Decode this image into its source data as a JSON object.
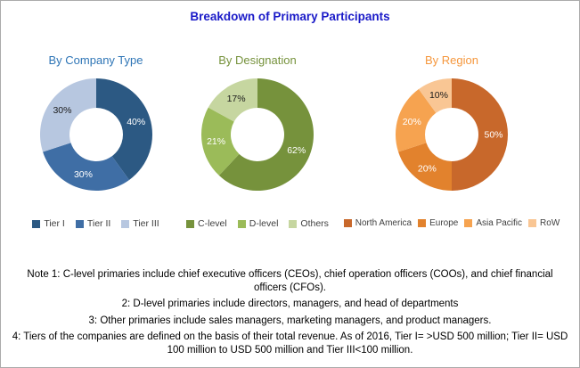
{
  "header": {
    "title": "Breakdown of Primary Participants",
    "title_color": "#1a1ac8"
  },
  "chart_data": [
    {
      "type": "pie",
      "donut": true,
      "title": "By Company Type",
      "title_color": "#2e75b6",
      "legend_position": "bottom",
      "categories": [
        "Tier I",
        "Tier II",
        "Tier III"
      ],
      "values": [
        40,
        30,
        30
      ],
      "value_labels": [
        "40%",
        "30%",
        "30%"
      ],
      "colors": [
        "#2c5983",
        "#3f6ea5",
        "#b7c7e0"
      ],
      "value_label_colors": [
        "#ffffff",
        "#ffffff",
        "#1a1a1a"
      ]
    },
    {
      "type": "pie",
      "donut": true,
      "title": "By Designation",
      "title_color": "#76923c",
      "legend_position": "bottom",
      "categories": [
        "C-level",
        "D-level",
        "Others"
      ],
      "values": [
        62,
        21,
        17
      ],
      "value_labels": [
        "62%",
        "21%",
        "17%"
      ],
      "colors": [
        "#76923c",
        "#9bbb59",
        "#c6d6a0"
      ],
      "value_label_colors": [
        "#ffffff",
        "#ffffff",
        "#1a1a1a"
      ]
    },
    {
      "type": "pie",
      "donut": true,
      "title": "By Region",
      "title_color": "#f5973d",
      "legend_position": "bottom",
      "categories": [
        "North America",
        "Europe",
        "Asia Pacific",
        "RoW"
      ],
      "values": [
        50,
        20,
        20,
        10
      ],
      "value_labels": [
        "50%",
        "20%",
        "20%",
        "10%"
      ],
      "colors": [
        "#c8682b",
        "#e2822d",
        "#f6a350",
        "#f9c694"
      ],
      "value_label_colors": [
        "#ffffff",
        "#ffffff",
        "#ffffff",
        "#1a1a1a"
      ]
    }
  ],
  "notes": [
    "Note 1: C-level primaries include chief executive officers (CEOs), chief operation officers (COOs), and chief financial officers (CFOs).",
    "2: D-level primaries include directors, managers, and head of departments",
    "3: Other primaries include sales managers, marketing managers, and product managers.",
    "4: Tiers of the companies are defined on the basis of their total revenue. As of 2016, Tier I= >USD 500 million; Tier II= USD 100 million to USD 500 million and Tier III<100 million."
  ]
}
